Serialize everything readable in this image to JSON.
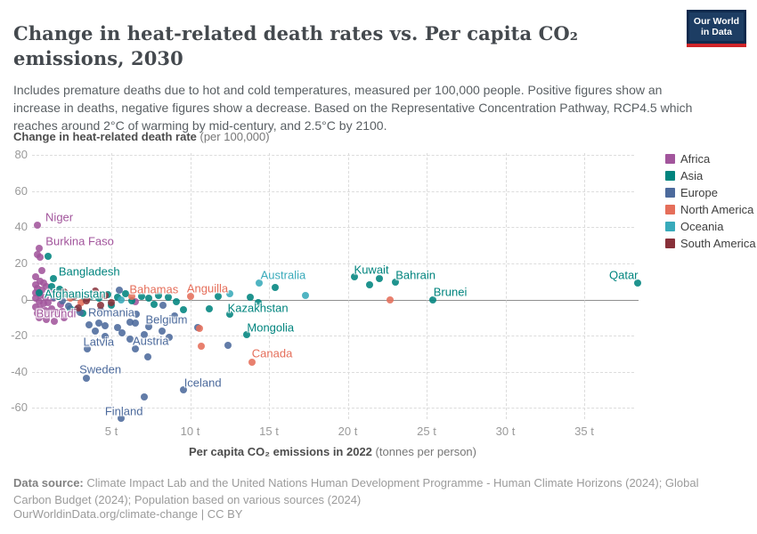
{
  "header": {
    "title": "Change in heat-related death rates vs. Per capita CO₂ emissions, 2030",
    "subtitle": "Includes premature deaths due to hot and cold temperatures, measured per 100,000 people. Positive figures show an increase in deaths, negative figures show a decrease. Based on the Representative Concentration Pathway, RCP4.5 which reaches around 2°C of warming by mid-century, and 2.5°C by 2100.",
    "logo_line1": "Our World",
    "logo_line2": "in Data"
  },
  "axes": {
    "y_title_bold": "Change in heat-related death rate",
    "y_title_rest": " (per 100,000)",
    "x_title_bold": "Per capita CO₂ emissions in 2022",
    "x_title_rest": " (tonnes per person)"
  },
  "footer": {
    "source_bold": "Data source:",
    "source_rest": " Climate Impact Lab and the United Nations Human Development Programme - Human Climate Horizons (2024); Global Carbon Budget (2024); Population based on various sources (2024)",
    "link": "OurWorldinData.org/climate-change | CC BY"
  },
  "chart_data": {
    "type": "scatter",
    "title": "Change in heat-related death rates vs. Per capita CO₂ emissions, 2030",
    "xlabel": "Per capita CO₂ emissions in 2022 (tonnes per person)",
    "ylabel": "Change in heat-related death rate (per 100,000)",
    "xlim": [
      0,
      39
    ],
    "ylim": [
      -70,
      80
    ],
    "grid": true,
    "legend_position": "right",
    "x_ticks": [
      {
        "value": 5,
        "label": "5 t"
      },
      {
        "value": 10,
        "label": "10 t"
      },
      {
        "value": 15,
        "label": "15 t"
      },
      {
        "value": 20,
        "label": "20 t"
      },
      {
        "value": 25,
        "label": "25 t"
      },
      {
        "value": 30,
        "label": "30 t"
      },
      {
        "value": 35,
        "label": "35 t"
      }
    ],
    "y_ticks": [
      {
        "value": 80,
        "label": "80"
      },
      {
        "value": 60,
        "label": "60"
      },
      {
        "value": 40,
        "label": "40"
      },
      {
        "value": 20,
        "label": "20"
      },
      {
        "value": 0,
        "label": "0"
      },
      {
        "value": -20,
        "label": "-20"
      },
      {
        "value": -40,
        "label": "-40"
      },
      {
        "value": -60,
        "label": "-60"
      }
    ],
    "series": [
      {
        "name": "Africa",
        "color": "#a2559c",
        "points": [
          [
            0.3,
            41
          ],
          [
            0.4,
            28.5
          ],
          [
            0.3,
            25
          ],
          [
            0.5,
            23.5
          ],
          [
            0.6,
            16
          ],
          [
            0.2,
            12.5
          ],
          [
            0.5,
            10
          ],
          [
            0.2,
            8
          ],
          [
            0.7,
            9
          ],
          [
            0.3,
            6
          ],
          [
            0.6,
            5
          ],
          [
            0.9,
            7
          ],
          [
            0.2,
            3.5
          ],
          [
            0.5,
            2
          ],
          [
            0.8,
            1
          ],
          [
            1.1,
            4
          ],
          [
            0.2,
            0.5
          ],
          [
            0.4,
            -1
          ],
          [
            0.7,
            -2
          ],
          [
            1.0,
            -1.5
          ],
          [
            1.3,
            0.5
          ],
          [
            0.2,
            -4
          ],
          [
            0.5,
            -5
          ],
          [
            0.8,
            -6
          ],
          [
            1.2,
            -5
          ],
          [
            0.3,
            -7.5
          ],
          [
            0.6,
            -8.5
          ],
          [
            1.0,
            -8.5
          ],
          [
            1.5,
            -7
          ],
          [
            1.9,
            -6.5
          ],
          [
            0.4,
            -10
          ],
          [
            0.9,
            -11
          ],
          [
            1.4,
            -12
          ],
          [
            2.0,
            -10
          ],
          [
            1.6,
            2.5
          ],
          [
            1.8,
            -2.5
          ],
          [
            6.5,
            -1
          ]
        ]
      },
      {
        "name": "Asia",
        "color": "#00847e",
        "points": [
          [
            1.3,
            11.5
          ],
          [
            0.4,
            3.5
          ],
          [
            1.0,
            24
          ],
          [
            1.2,
            7
          ],
          [
            1.7,
            5.5
          ],
          [
            2.1,
            3
          ],
          [
            2.5,
            1.5
          ],
          [
            2.9,
            2.5
          ],
          [
            3.3,
            0.5
          ],
          [
            3.7,
            1.5
          ],
          [
            4.2,
            0.5
          ],
          [
            4.8,
            2.5
          ],
          [
            5.4,
            1
          ],
          [
            5.9,
            3
          ],
          [
            6.3,
            -0.5
          ],
          [
            6.9,
            1.5
          ],
          [
            7.4,
            0.5
          ],
          [
            8.0,
            2
          ],
          [
            8.6,
            1
          ],
          [
            9.1,
            -1
          ],
          [
            9.6,
            -5.5
          ],
          [
            11.2,
            -5
          ],
          [
            11.8,
            1.5
          ],
          [
            3.2,
            -7.5
          ],
          [
            2.4,
            -5
          ],
          [
            5.0,
            -3
          ],
          [
            7.7,
            -2.5
          ],
          [
            12.5,
            -8
          ],
          [
            13.6,
            -19.5
          ],
          [
            13.8,
            1
          ],
          [
            14.3,
            -1.5
          ],
          [
            15.4,
            6.5
          ],
          [
            20.4,
            12.8
          ],
          [
            21.4,
            8
          ],
          [
            22.0,
            11.5
          ],
          [
            23.0,
            9.5
          ],
          [
            25.4,
            0
          ],
          [
            38.4,
            9
          ]
        ]
      },
      {
        "name": "Europe",
        "color": "#4c6a9c",
        "points": [
          [
            1.4,
            1
          ],
          [
            1.9,
            -0.5
          ],
          [
            2.3,
            -3.5
          ],
          [
            2.8,
            -5.5
          ],
          [
            3.0,
            -7
          ],
          [
            4.3,
            -6
          ],
          [
            3.6,
            -14
          ],
          [
            4.2,
            -13
          ],
          [
            4.0,
            -17.5
          ],
          [
            4.6,
            -14.5
          ],
          [
            5.4,
            -15.5
          ],
          [
            5.7,
            -18.5
          ],
          [
            6.2,
            -12.5
          ],
          [
            6.5,
            -13
          ],
          [
            7.1,
            -19.5
          ],
          [
            7.4,
            -15
          ],
          [
            8.2,
            -17.5
          ],
          [
            8.7,
            -21
          ],
          [
            3.5,
            -27.5
          ],
          [
            6.5,
            -27.5
          ],
          [
            7.3,
            -32
          ],
          [
            3.4,
            -43.5
          ],
          [
            4.6,
            -20.5
          ],
          [
            6.2,
            -22
          ],
          [
            7.8,
            -11.5
          ],
          [
            5.5,
            5
          ],
          [
            6.6,
            -8
          ],
          [
            10.5,
            -15.5
          ],
          [
            12.4,
            -25.5
          ],
          [
            9.6,
            -50
          ],
          [
            5.6,
            -66
          ],
          [
            7.1,
            -54
          ],
          [
            8.3,
            -3
          ],
          [
            9.0,
            -9
          ]
        ]
      },
      {
        "name": "North America",
        "color": "#e56e5a",
        "points": [
          [
            6.3,
            1.5
          ],
          [
            10.0,
            1.5
          ],
          [
            13.9,
            -34.5
          ],
          [
            10.7,
            -26
          ],
          [
            10.6,
            -16
          ],
          [
            22.7,
            0
          ],
          [
            2.4,
            0.5
          ],
          [
            3.1,
            -1.5
          ],
          [
            1.6,
            1.5
          ]
        ]
      },
      {
        "name": "Oceania",
        "color": "#38aaba",
        "points": [
          [
            14.4,
            9
          ],
          [
            5.6,
            0
          ],
          [
            12.5,
            3
          ],
          [
            17.3,
            2
          ]
        ]
      },
      {
        "name": "South America",
        "color": "#883039",
        "points": [
          [
            2.0,
            4
          ],
          [
            2.6,
            1.5
          ],
          [
            3.4,
            -0.5
          ],
          [
            4.0,
            4.5
          ],
          [
            4.6,
            2
          ],
          [
            5.0,
            -1.5
          ],
          [
            3.5,
            0.5
          ],
          [
            2.9,
            -4.5
          ],
          [
            4.3,
            -3
          ]
        ]
      }
    ],
    "annotations": [
      {
        "text": "Niger",
        "t": 1.7,
        "v": 45.5,
        "series": "Africa"
      },
      {
        "text": "Burkina Faso",
        "t": 3.0,
        "v": 32.5,
        "series": "Africa"
      },
      {
        "text": "Bangladesh",
        "t": 3.6,
        "v": 15.5,
        "series": "Asia"
      },
      {
        "text": "Afghanistan",
        "t": 2.7,
        "v": 3,
        "series": "Asia"
      },
      {
        "text": "Burundi",
        "t": 1.5,
        "v": -7.5,
        "series": "Africa"
      },
      {
        "text": "Romania",
        "t": 5.0,
        "v": -7,
        "series": "Europe"
      },
      {
        "text": "Bahamas",
        "t": 7.7,
        "v": 5.5,
        "series": "North America"
      },
      {
        "text": "Anguilla",
        "t": 11.1,
        "v": 6,
        "series": "North America"
      },
      {
        "text": "Belgium",
        "t": 8.5,
        "v": -11,
        "series": "Europe"
      },
      {
        "text": "Latvia",
        "t": 4.2,
        "v": -23.5,
        "series": "Europe"
      },
      {
        "text": "Austria",
        "t": 7.5,
        "v": -23,
        "series": "Europe"
      },
      {
        "text": "Kazakhstan",
        "t": 14.3,
        "v": -4.5,
        "series": "Asia"
      },
      {
        "text": "Mongolia",
        "t": 15.1,
        "v": -15.5,
        "series": "Asia"
      },
      {
        "text": "Sweden",
        "t": 4.3,
        "v": -38.5,
        "series": "Europe"
      },
      {
        "text": "Iceland",
        "t": 10.8,
        "v": -46,
        "series": "Europe"
      },
      {
        "text": "Canada",
        "t": 15.2,
        "v": -30,
        "series": "North America"
      },
      {
        "text": "Finland",
        "t": 5.8,
        "v": -62,
        "series": "Europe"
      },
      {
        "text": "Australia",
        "t": 15.9,
        "v": 13.5,
        "series": "Oceania"
      },
      {
        "text": "Kuwait",
        "t": 21.5,
        "v": 16.5,
        "series": "Asia"
      },
      {
        "text": "Bahrain",
        "t": 24.3,
        "v": 13.5,
        "series": "Asia"
      },
      {
        "text": "Brunei",
        "t": 26.5,
        "v": 4,
        "series": "Asia"
      },
      {
        "text": "Qatar",
        "t": 37.5,
        "v": 13.5,
        "series": "Asia"
      }
    ]
  }
}
